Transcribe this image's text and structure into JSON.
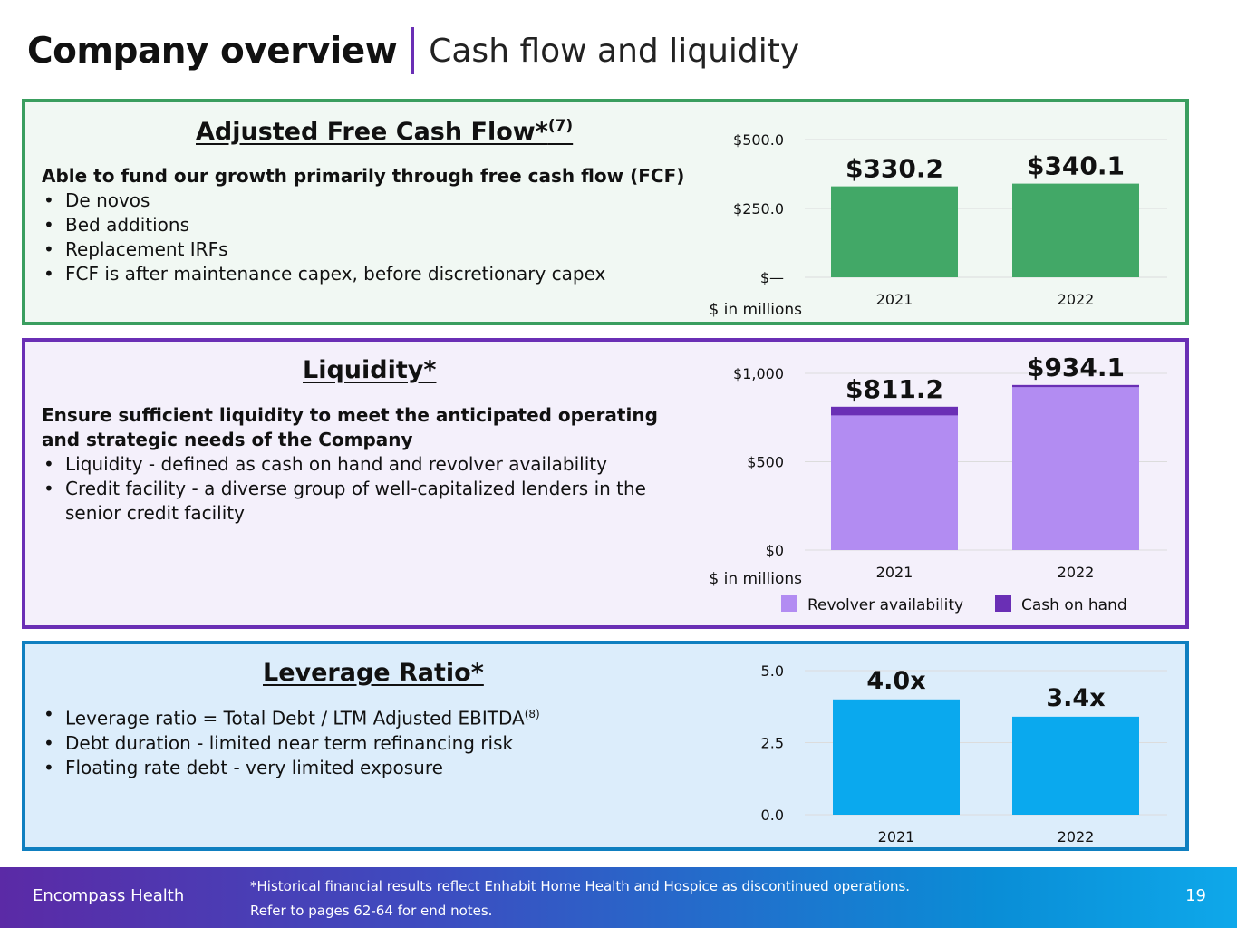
{
  "header": {
    "title": "Company overview",
    "subtitle": "Cash flow and liquidity"
  },
  "panels": {
    "fcf": {
      "heading": "Adjusted Free Cash Flow*",
      "heading_sup": "(7)",
      "lead": "Able to fund our growth primarily through free cash flow (FCF)",
      "bullets": [
        "De novos",
        "Bed additions",
        "Replacement IRFs",
        "FCF is after maintenance capex, before discretionary capex"
      ],
      "unit_note": "$ in millions"
    },
    "liquidity": {
      "heading": "Liquidity*",
      "lead": "Ensure sufficient liquidity to meet the anticipated operating and strategic needs of the Company",
      "bullets": [
        "Liquidity - defined as cash on hand and revolver availability",
        "Credit facility - a diverse group of well-capitalized lenders in the senior credit facility"
      ],
      "unit_note": "$ in millions"
    },
    "leverage": {
      "heading": "Leverage Ratio*",
      "bullets": [
        "Leverage ratio = Total Debt / LTM Adjusted EBITDA",
        "Debt duration - limited near term refinancing risk",
        "Floating rate debt - very limited exposure"
      ],
      "bullet0_sup": "(8)"
    }
  },
  "chart_data": [
    {
      "type": "bar",
      "title": "Adjusted Free Cash Flow",
      "categories": [
        "2021",
        "2022"
      ],
      "values": [
        330.2,
        340.1
      ],
      "data_labels": [
        "$330.2",
        "$340.1"
      ],
      "yticks": [
        "$—",
        "$250.0",
        "$500.0"
      ],
      "ylim": [
        0,
        500
      ],
      "color": "#42a867",
      "ylabel": "$ in millions"
    },
    {
      "type": "bar",
      "stacked": true,
      "title": "Liquidity",
      "categories": [
        "2021",
        "2022"
      ],
      "series": [
        {
          "name": "Revolver availability",
          "values": [
            762,
            922
          ],
          "color": "#b28cf2"
        },
        {
          "name": "Cash on hand",
          "values": [
            49.2,
            12.1
          ],
          "color": "#6a2fb5"
        }
      ],
      "totals_labels": [
        "$811.2",
        "$934.1"
      ],
      "yticks": [
        "$0",
        "$500",
        "$1,000"
      ],
      "ylim": [
        0,
        1000
      ],
      "ylabel": "$ in millions",
      "legend": [
        "Revolver availability",
        "Cash on hand"
      ]
    },
    {
      "type": "bar",
      "title": "Leverage Ratio",
      "categories": [
        "2021",
        "2022"
      ],
      "values": [
        4.0,
        3.4
      ],
      "data_labels": [
        "4.0x",
        "3.4x"
      ],
      "yticks": [
        "0.0",
        "2.5",
        "5.0"
      ],
      "ylim": [
        0,
        5
      ],
      "color": "#0aa9ee"
    }
  ],
  "footer": {
    "brand": "Encompass Health",
    "note1": "*Historical financial results reflect Enhabit Home Health and Hospice as discontinued operations.",
    "note2": "Refer to pages 62-64 for end notes.",
    "page": "19"
  }
}
